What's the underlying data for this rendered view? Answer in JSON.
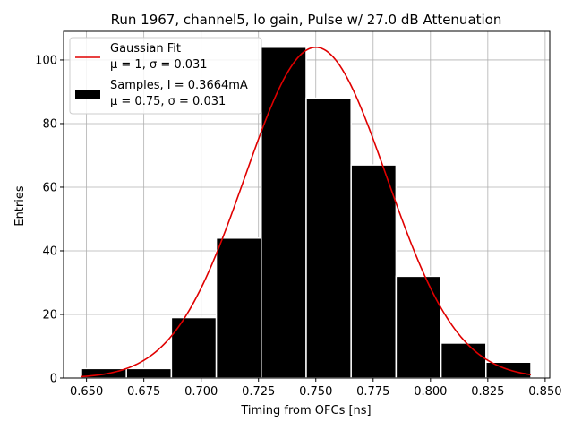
{
  "chart_data": {
    "type": "bar",
    "title": "Run 1967, channel5, lo gain, Pulse w/ 27.0 dB Attenuation",
    "xlabel": "Timing from OFCs [ns]",
    "ylabel": "Entries",
    "xlim": [
      0.64,
      0.852
    ],
    "ylim": [
      0,
      109
    ],
    "grid": true,
    "legend_position": "top-left",
    "x_ticks": [
      0.65,
      0.675,
      0.7,
      0.725,
      0.75,
      0.775,
      0.8,
      0.825,
      0.85
    ],
    "x_tick_labels": [
      "0.650",
      "0.675",
      "0.700",
      "0.725",
      "0.750",
      "0.775",
      "0.800",
      "0.825",
      "0.850"
    ],
    "y_ticks": [
      0,
      20,
      40,
      60,
      80,
      100
    ],
    "y_tick_labels": [
      "0",
      "20",
      "40",
      "60",
      "80",
      "100"
    ],
    "bins": [
      {
        "x0": 0.6478,
        "x1": 0.6674,
        "value": 3
      },
      {
        "x0": 0.6674,
        "x1": 0.687,
        "value": 3
      },
      {
        "x0": 0.687,
        "x1": 0.7066,
        "value": 19
      },
      {
        "x0": 0.7066,
        "x1": 0.7262,
        "value": 44
      },
      {
        "x0": 0.7262,
        "x1": 0.7458,
        "value": 104
      },
      {
        "x0": 0.7458,
        "x1": 0.7654,
        "value": 88
      },
      {
        "x0": 0.7654,
        "x1": 0.785,
        "value": 67
      },
      {
        "x0": 0.785,
        "x1": 0.8046,
        "value": 32
      },
      {
        "x0": 0.8046,
        "x1": 0.8242,
        "value": 11
      },
      {
        "x0": 0.8242,
        "x1": 0.8438,
        "value": 5
      }
    ],
    "fit": {
      "mean": 0.75,
      "sigma": 0.031,
      "amplitude": 104,
      "x_range": [
        0.6478,
        0.8438
      ]
    },
    "legend": [
      {
        "label_line1": "Gaussian Fit",
        "label_line2": "μ = 1, σ = 0.031",
        "color": "#e00000",
        "kind": "line"
      },
      {
        "label_line1": "Samples, I = 0.3664mA",
        "label_line2": "μ = 0.75, σ = 0.031",
        "color": "#000000",
        "kind": "patch"
      }
    ],
    "colors": {
      "bar": "#000000",
      "bar_edge": "#ffffff",
      "fit": "#e00000",
      "grid": "#b0b0b0"
    }
  }
}
